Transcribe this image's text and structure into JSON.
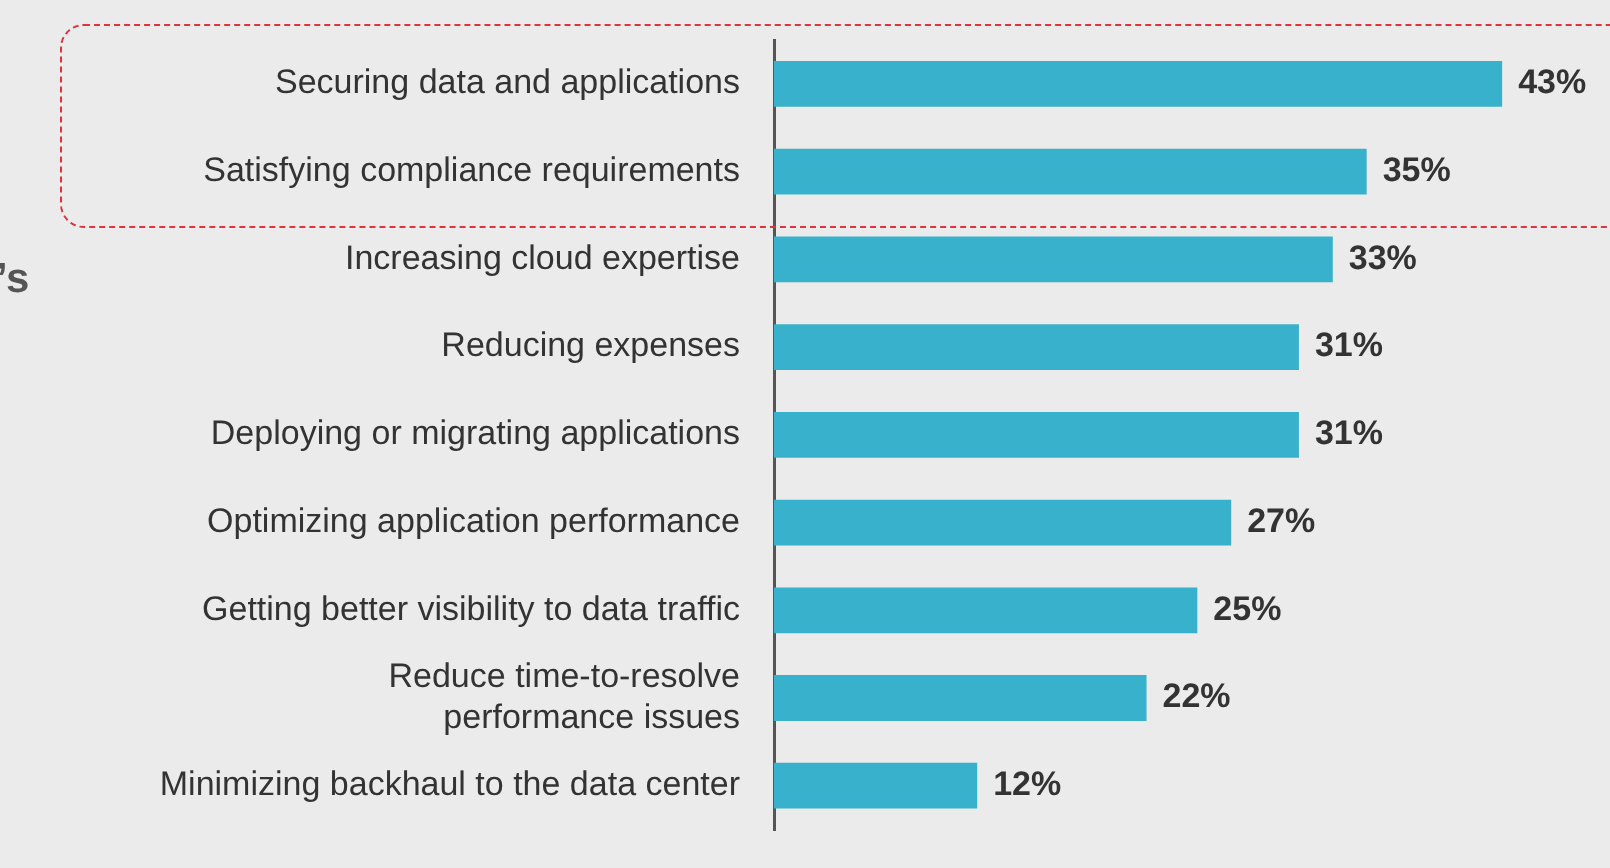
{
  "chart_data": {
    "type": "bar",
    "orientation": "horizontal",
    "categories": [
      "Securing data and applications",
      "Satisfying compliance requirements",
      "Increasing cloud expertise",
      "Reducing expenses",
      "Deploying or migrating applications",
      "Optimizing application performance",
      "Getting better visibility to data traffic",
      "Reduce time-to-resolve\nperformance issues",
      "Minimizing backhaul to the data center"
    ],
    "values": [
      43,
      35,
      33,
      31,
      31,
      27,
      25,
      22,
      12
    ],
    "value_labels": [
      "43%",
      "35%",
      "33%",
      "31%",
      "31%",
      "27%",
      "25%",
      "22%",
      "12%"
    ],
    "color": "#38b2cc",
    "tick_labels": "y",
    "grid": false,
    "legend": false,
    "annotations": [
      "’s"
    ]
  }
}
